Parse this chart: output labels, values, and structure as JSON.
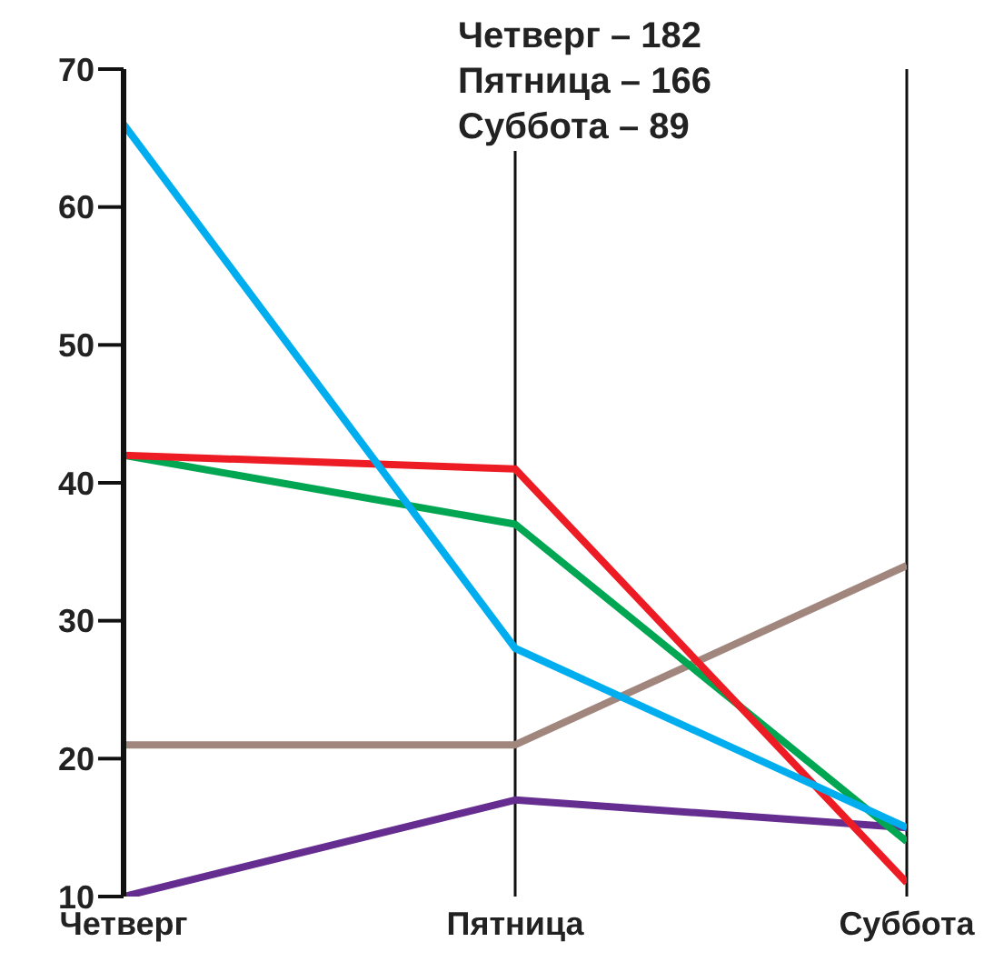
{
  "chart_data": {
    "type": "line",
    "categories": [
      "Четверг",
      "Пятница",
      "Суббота"
    ],
    "series": [
      {
        "color": "#a0867d",
        "values": [
          21,
          21,
          34
        ]
      },
      {
        "color": "#662d91",
        "values": [
          10,
          17,
          15
        ]
      },
      {
        "color": "#00a651",
        "values": [
          42,
          37,
          14
        ]
      },
      {
        "color": "#ed1c24",
        "values": [
          42,
          41,
          11
        ]
      },
      {
        "color": "#00aeef",
        "values": [
          66,
          28,
          15
        ]
      }
    ],
    "ylim": [
      10,
      70
    ],
    "yticks": [
      10,
      20,
      30,
      40,
      50,
      60,
      70
    ],
    "grid": "x",
    "annotations": [
      "Четверг – 182",
      "Пятница – 166",
      "Суббота – 89"
    ]
  }
}
